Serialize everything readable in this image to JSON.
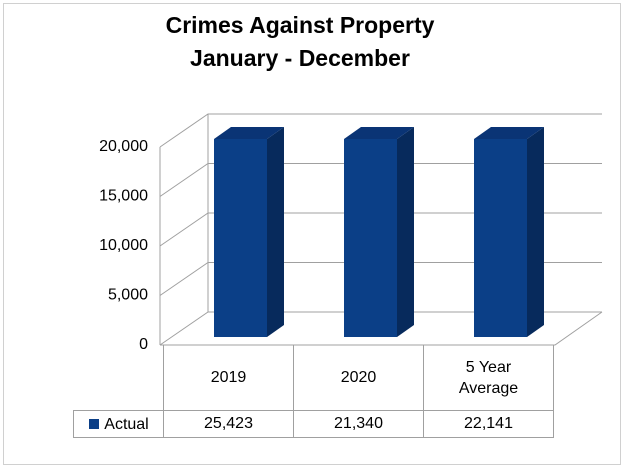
{
  "chart_data": {
    "type": "bar3d",
    "title": "Crimes Against Property",
    "subtitle": "January - December",
    "categories": [
      "2019",
      "2020",
      "5 Year Average"
    ],
    "series": [
      {
        "name": "Actual",
        "color": "#0b3f87",
        "values": [
          25423,
          21340,
          22141
        ],
        "value_labels": [
          "25,423",
          "21,340",
          "22,141"
        ]
      }
    ],
    "ylim": [
      0,
      20000
    ],
    "yticks": [
      0,
      {
        "value": 5000,
        "label": "5,000"
      },
      {
        "value": 10000,
        "label": "10,000"
      },
      {
        "value": 15000,
        "label": "15,000"
      },
      {
        "value": 20000,
        "label": "20,000"
      }
    ],
    "grid": true
  }
}
